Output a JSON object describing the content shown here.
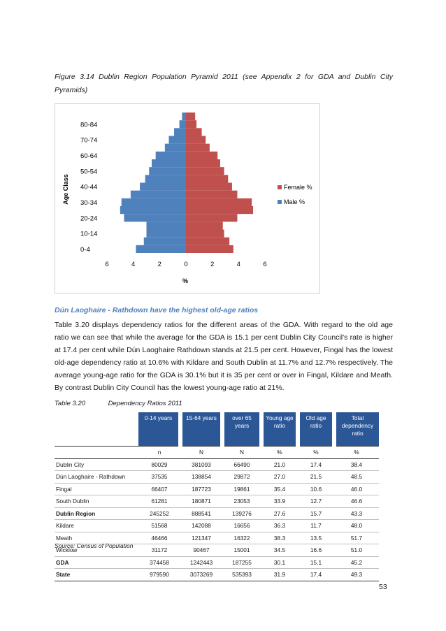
{
  "figure_caption": "Figure 3.14 Dublin Region Population Pyramid 2011 (see Appendix 2 for GDA and Dublin City Pyramids)",
  "chart_data": {
    "type": "bar",
    "orientation": "horizontal-pyramid",
    "categories": [
      "0-4",
      "5-9",
      "10-14",
      "15-19",
      "20-24",
      "25-29",
      "30-34",
      "35-39",
      "40-44",
      "45-49",
      "50-54",
      "55-59",
      "60-64",
      "65-69",
      "70-74",
      "75-79",
      "80-84",
      "85+"
    ],
    "tick_labels": [
      "0-4",
      "10-14",
      "20-24",
      "30-34",
      "40-44",
      "50-54",
      "60-64",
      "70-74",
      "80-84"
    ],
    "series": [
      {
        "name": "Female %",
        "color": "#c0504d",
        "values": [
          3.6,
          3.3,
          2.9,
          2.8,
          3.9,
          5.1,
          5.0,
          3.9,
          3.5,
          3.2,
          2.9,
          2.6,
          2.4,
          1.8,
          1.5,
          1.2,
          0.8,
          0.7
        ]
      },
      {
        "name": "Male %",
        "color": "#4f81bd",
        "values": [
          3.8,
          3.2,
          3.0,
          3.0,
          4.7,
          5.0,
          4.9,
          4.2,
          3.5,
          3.1,
          2.8,
          2.6,
          2.3,
          1.6,
          1.3,
          0.9,
          0.5,
          0.3
        ]
      }
    ],
    "xticks": [
      "6",
      "4",
      "2",
      "0",
      "2",
      "4",
      "6"
    ],
    "xlim": [
      -6,
      6
    ],
    "xlabel": "%",
    "ylabel": "Age Class",
    "legend": "right"
  },
  "section_heading": "Dún Laoghaire - Rathdown have the highest old-age ratios",
  "paragraph": "Table 3.20 displays dependency ratios for the different areas of the GDA. With regard to the old age ratio we can see that while the average for the GDA is 15.1 per cent Dublin City Council's rate is higher at 17.4 per cent while Dún Laoghaire Rathdown stands at 21.5 per cent. However, Fingal has the lowest old-age dependency ratio at 10.6% with Kildare and South Dublin at 11.7% and 12.7% respectively. The average young-age ratio for the GDA is 30.1% but it is 35 per cent or over in Fingal, Kildare and Meath. By contrast Dublin City Council has the lowest young-age ratio at 21%.",
  "table": {
    "caption_number": "Table 3.20",
    "caption_title": "Dependency Ratios 2011",
    "headers": [
      "0-14 years",
      "15-64 years",
      "over 65 years",
      "Young age ratio",
      "Old age ratio",
      "Total dependency ratio"
    ],
    "units": [
      "n",
      "N",
      "N",
      "%",
      "%",
      "%"
    ],
    "rows": [
      {
        "label": "Dublin City",
        "values": [
          "80029",
          "381093",
          "66490",
          "21.0",
          "17.4",
          "38.4"
        ],
        "bold": false
      },
      {
        "label": "Dún Laoghaire - Rathdown",
        "values": [
          "37535",
          "138854",
          "29872",
          "27.0",
          "21.5",
          "48.5"
        ],
        "bold": false
      },
      {
        "label": "Fingal",
        "values": [
          "66407",
          "187723",
          "19861",
          "35.4",
          "10.6",
          "46.0"
        ],
        "bold": false
      },
      {
        "label": "South Dublin",
        "values": [
          "61281",
          "180871",
          "23053",
          "33.9",
          "12.7",
          "46.6"
        ],
        "bold": false
      },
      {
        "label": "Dublin Region",
        "values": [
          "245252",
          "888541",
          "139276",
          "27.6",
          "15.7",
          "43.3"
        ],
        "bold": true
      },
      {
        "label": "Kildare",
        "values": [
          "51568",
          "142088",
          "16656",
          "36.3",
          "11.7",
          "48.0"
        ],
        "bold": false
      },
      {
        "label": "Meath",
        "values": [
          "46466",
          "121347",
          "16322",
          "38.3",
          "13.5",
          "51.7"
        ],
        "bold": false
      },
      {
        "label": "Wicklow",
        "values": [
          "31172",
          "90467",
          "15001",
          "34.5",
          "16.6",
          "51.0"
        ],
        "bold": false
      },
      {
        "label": "GDA",
        "values": [
          "374458",
          "1242443",
          "187255",
          "30.1",
          "15.1",
          "45.2"
        ],
        "bold": true
      },
      {
        "label": "State",
        "values": [
          "979590",
          "3073269",
          "535393",
          "31.9",
          "17.4",
          "49.3"
        ],
        "bold": true
      }
    ],
    "source": "Source: Census of Population"
  },
  "page_number": "53"
}
